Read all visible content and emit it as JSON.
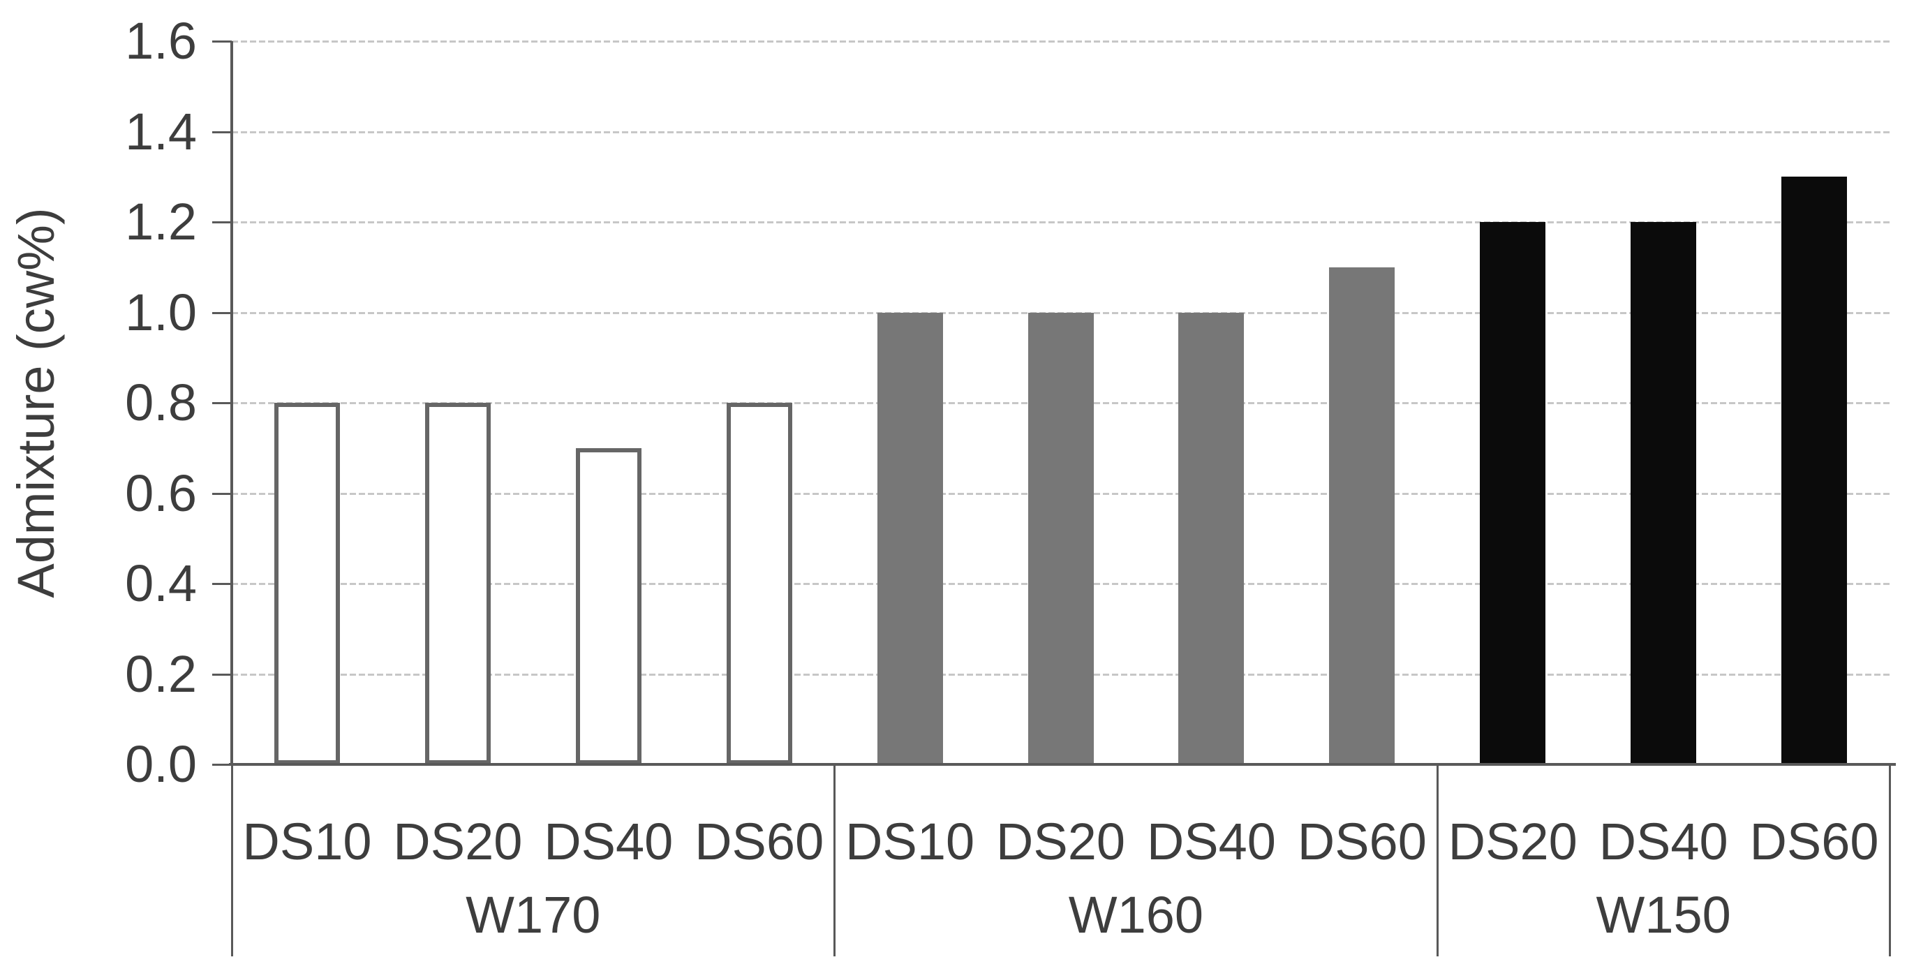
{
  "chart_data": {
    "type": "bar",
    "title": "",
    "ylabel": "Admixture (cw%)",
    "xlabel": "",
    "ylim": [
      0,
      1.6
    ],
    "ytick_step": 0.2,
    "yticks": [
      {
        "value": 0.0,
        "label": "0.0"
      },
      {
        "value": 0.2,
        "label": "0.2"
      },
      {
        "value": 0.4,
        "label": "0.4"
      },
      {
        "value": 0.6,
        "label": "0.6"
      },
      {
        "value": 0.8,
        "label": "0.8"
      },
      {
        "value": 1.0,
        "label": "1.0"
      },
      {
        "value": 1.2,
        "label": "1.2"
      },
      {
        "value": 1.4,
        "label": "1.4"
      },
      {
        "value": 1.6,
        "label": "1.6"
      }
    ],
    "grid": "horizontal-dashed",
    "legend": "none",
    "groups": [
      {
        "label": "W170",
        "bar_style": "outline",
        "fill": "#ffffff",
        "border": "#666666",
        "bars": [
          {
            "label": "DS10",
            "value": 0.8
          },
          {
            "label": "DS20",
            "value": 0.8
          },
          {
            "label": "DS40",
            "value": 0.7
          },
          {
            "label": "DS60",
            "value": 0.8
          }
        ]
      },
      {
        "label": "W160",
        "bar_style": "solid",
        "fill": "#777777",
        "border": "#6e6e6e",
        "bars": [
          {
            "label": "DS10",
            "value": 1.0
          },
          {
            "label": "DS20",
            "value": 1.0
          },
          {
            "label": "DS40",
            "value": 1.0
          },
          {
            "label": "DS60",
            "value": 1.1
          }
        ]
      },
      {
        "label": "W150",
        "bar_style": "solid",
        "fill": "#0b0b0b",
        "border": "#0b0b0b",
        "bars": [
          {
            "label": "DS20",
            "value": 1.2
          },
          {
            "label": "DS40",
            "value": 1.2
          },
          {
            "label": "DS60",
            "value": 1.3
          }
        ]
      }
    ]
  },
  "colors": {
    "axis": "#595959",
    "gridline": "#c7c7c7",
    "text": "#3d3d3d",
    "background": "#ffffff"
  }
}
